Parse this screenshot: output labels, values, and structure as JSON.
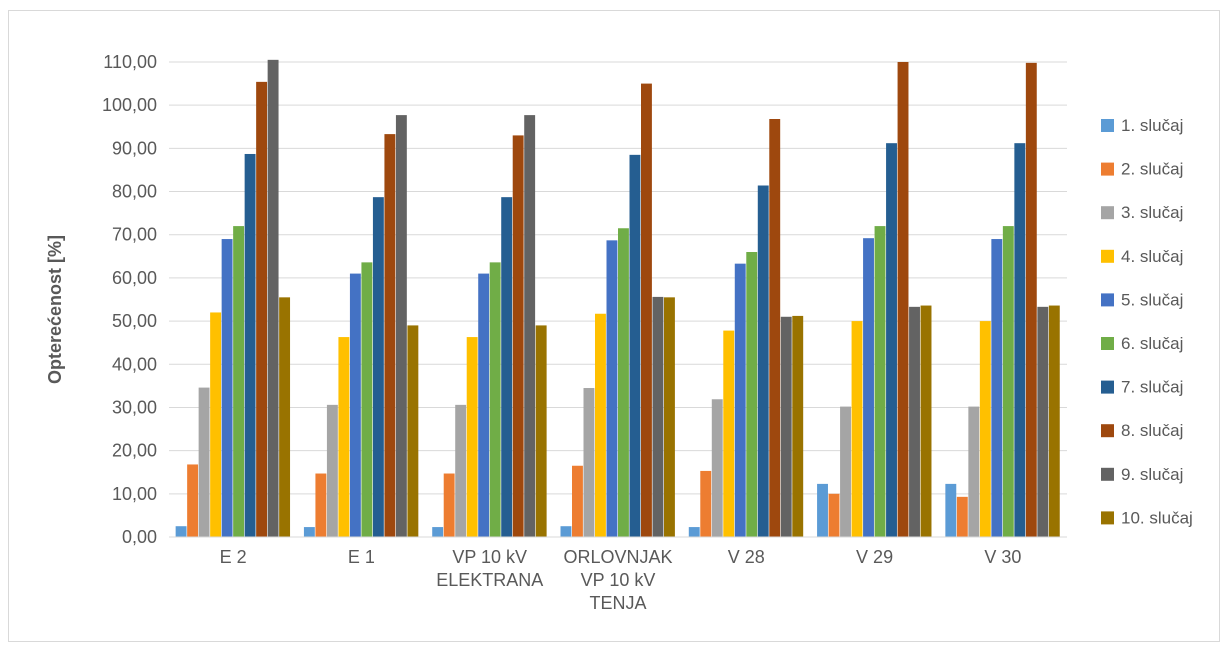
{
  "chart_data": {
    "type": "bar",
    "title": "",
    "xlabel": "",
    "ylabel": "Opterećenost [%]",
    "ylim": [
      0,
      110
    ],
    "ytick_step": 10,
    "ytick_labels": [
      "0,00",
      "10,00",
      "20,00",
      "30,00",
      "40,00",
      "50,00",
      "60,00",
      "70,00",
      "80,00",
      "90,00",
      "100,00",
      "110,00"
    ],
    "grid": true,
    "legend_position": "right",
    "categories": [
      [
        "E 2"
      ],
      [
        "E 1"
      ],
      [
        "VP 10 kV",
        "ELEKTRANA"
      ],
      [
        "ORLOVNJAK",
        "VP 10 kV",
        "TENJA"
      ],
      [
        "V 28"
      ],
      [
        "V 29"
      ],
      [
        "V 30"
      ]
    ],
    "series": [
      {
        "name": "1. slučaj",
        "color": "#5b9bd5",
        "values": [
          2.5,
          2.3,
          2.3,
          2.5,
          2.3,
          12.3,
          12.3
        ]
      },
      {
        "name": "2. slučaj",
        "color": "#ed7d31",
        "values": [
          16.8,
          14.7,
          14.7,
          16.5,
          15.3,
          10.0,
          9.3
        ]
      },
      {
        "name": "3. slučaj",
        "color": "#a5a5a5",
        "values": [
          34.6,
          30.6,
          30.6,
          34.5,
          31.9,
          30.2,
          30.2
        ]
      },
      {
        "name": "4. slučaj",
        "color": "#ffc000",
        "values": [
          52.0,
          46.3,
          46.3,
          51.7,
          47.8,
          50.0,
          50.0
        ]
      },
      {
        "name": "5. slučaj",
        "color": "#4472c4",
        "values": [
          69.0,
          61.0,
          61.0,
          68.7,
          63.3,
          69.2,
          69.0
        ]
      },
      {
        "name": "6. slučaj",
        "color": "#70ad47",
        "values": [
          72.0,
          63.6,
          63.6,
          71.5,
          66.0,
          72.0,
          72.0
        ]
      },
      {
        "name": "7. slučaj",
        "color": "#255e91",
        "values": [
          88.7,
          78.7,
          78.7,
          88.5,
          81.4,
          91.2,
          91.2
        ]
      },
      {
        "name": "8. slučaj",
        "color": "#9e480e",
        "values": [
          105.4,
          93.3,
          93.0,
          105.0,
          96.8,
          110.0,
          109.8
        ]
      },
      {
        "name": "9. slučaj",
        "color": "#636363",
        "values": [
          110.5,
          97.7,
          97.7,
          55.6,
          51.0,
          53.3,
          53.3
        ]
      },
      {
        "name": "10. slučaj",
        "color": "#997300",
        "values": [
          55.5,
          49.0,
          49.0,
          55.5,
          51.2,
          53.6,
          53.6
        ]
      }
    ]
  }
}
